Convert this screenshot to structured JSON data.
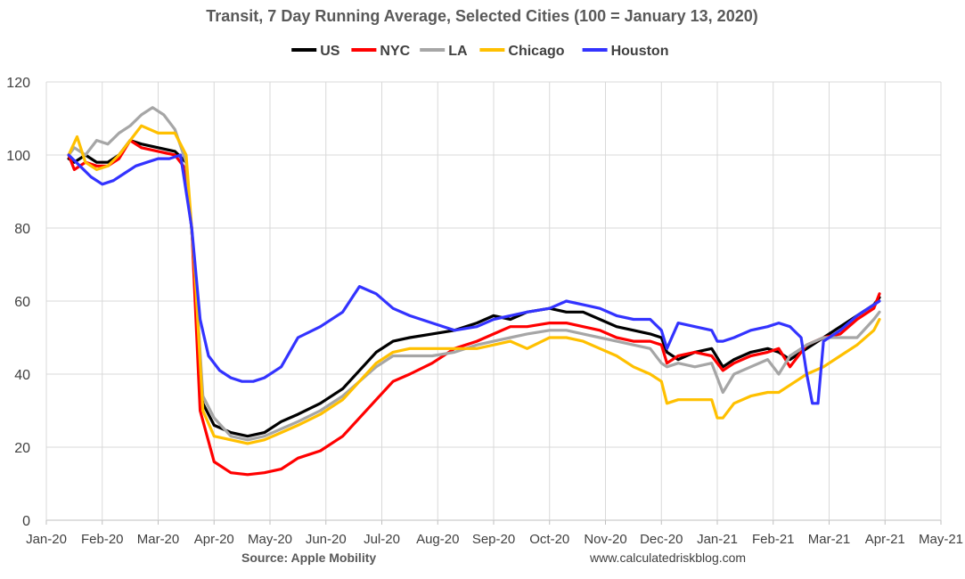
{
  "chart_data": {
    "type": "line",
    "title": "Transit, 7 Day Running Average, Selected Cities (100 = January 13, 2020)",
    "xlabel": "",
    "ylabel": "",
    "ylim": [
      0,
      120
    ],
    "yticks": [
      0,
      20,
      40,
      60,
      80,
      100,
      120
    ],
    "xlim": [
      0,
      16
    ],
    "x_unit": "months since 2020-01-01",
    "x_tick_labels": [
      "Jan-20",
      "Feb-20",
      "Mar-20",
      "Apr-20",
      "May-20",
      "Jun-20",
      "Jul-20",
      "Aug-20",
      "Sep-20",
      "Oct-20",
      "Nov-20",
      "Dec-20",
      "Jan-21",
      "Feb-21",
      "Mar-21",
      "Apr-21",
      "May-21"
    ],
    "grid": true,
    "legend_position": "top",
    "source": "Source: Apple Mobility",
    "website": "www.calculatedriskblog.com",
    "series": [
      {
        "name": "US",
        "color": "#000000",
        "x": [
          0.4,
          0.5,
          0.7,
          0.9,
          1.1,
          1.3,
          1.5,
          1.7,
          2.0,
          2.3,
          2.5,
          2.65,
          2.8,
          3.0,
          3.3,
          3.6,
          3.9,
          4.2,
          4.5,
          4.9,
          5.3,
          5.6,
          5.9,
          6.2,
          6.5,
          6.9,
          7.3,
          7.7,
          8.0,
          8.3,
          8.6,
          9.0,
          9.3,
          9.6,
          9.9,
          10.2,
          10.5,
          10.8,
          11.0,
          11.1,
          11.3,
          11.6,
          11.9,
          12.1,
          12.3,
          12.6,
          12.9,
          13.1,
          13.3,
          13.6,
          13.9,
          14.2,
          14.5,
          14.8,
          14.9
        ],
        "values": [
          99,
          98,
          100,
          98,
          98,
          100,
          104,
          103,
          102,
          101,
          98,
          70,
          32,
          26,
          24,
          23,
          24,
          27,
          29,
          32,
          36,
          41,
          46,
          49,
          50,
          51,
          52,
          54,
          56,
          55,
          57,
          58,
          57,
          57,
          55,
          53,
          52,
          51,
          50,
          46,
          44,
          46,
          47,
          42,
          44,
          46,
          47,
          46,
          44,
          47,
          50,
          53,
          56,
          59,
          61
        ]
      },
      {
        "name": "NYC",
        "color": "#ff0000",
        "x": [
          0.4,
          0.5,
          0.7,
          0.9,
          1.1,
          1.3,
          1.5,
          1.7,
          2.0,
          2.3,
          2.45,
          2.6,
          2.75,
          3.0,
          3.3,
          3.6,
          3.9,
          4.2,
          4.5,
          4.9,
          5.3,
          5.6,
          5.9,
          6.2,
          6.5,
          6.9,
          7.3,
          7.7,
          8.0,
          8.3,
          8.6,
          9.0,
          9.3,
          9.6,
          9.9,
          10.2,
          10.5,
          10.8,
          11.0,
          11.1,
          11.3,
          11.6,
          11.9,
          12.1,
          12.3,
          12.6,
          12.9,
          13.1,
          13.3,
          13.6,
          13.9,
          14.2,
          14.5,
          14.8,
          14.9
        ],
        "values": [
          100,
          96,
          98,
          97,
          97,
          99,
          104,
          102,
          101,
          100,
          97,
          80,
          30,
          16,
          13,
          12.5,
          13,
          14,
          17,
          19,
          23,
          28,
          33,
          38,
          40,
          43,
          47,
          49,
          51,
          53,
          53,
          54,
          54,
          53,
          52,
          50,
          49,
          49,
          48,
          43,
          45,
          46,
          45,
          41,
          43,
          45,
          46,
          47,
          42,
          48,
          50,
          51,
          55,
          58,
          62
        ]
      },
      {
        "name": "LA",
        "color": "#a6a6a6",
        "x": [
          0.4,
          0.5,
          0.7,
          0.9,
          1.1,
          1.3,
          1.5,
          1.7,
          1.9,
          2.1,
          2.3,
          2.5,
          2.65,
          2.8,
          3.0,
          3.3,
          3.6,
          3.9,
          4.2,
          4.5,
          4.9,
          5.3,
          5.6,
          5.9,
          6.2,
          6.5,
          6.9,
          7.3,
          7.7,
          8.0,
          8.3,
          8.6,
          9.0,
          9.3,
          9.6,
          9.9,
          10.2,
          10.5,
          10.8,
          11.0,
          11.1,
          11.3,
          11.6,
          11.9,
          12.1,
          12.3,
          12.6,
          12.9,
          13.1,
          13.3,
          13.6,
          13.9,
          14.2,
          14.5,
          14.8,
          14.9
        ],
        "values": [
          100,
          102,
          100,
          104,
          103,
          106,
          108,
          111,
          113,
          111,
          107,
          98,
          70,
          34,
          28,
          23,
          22,
          23,
          25,
          27,
          30,
          34,
          38,
          42,
          45,
          45,
          45,
          46,
          48,
          49,
          50,
          51,
          52,
          52,
          51,
          50,
          49,
          48,
          47,
          43,
          42,
          43,
          42,
          43,
          35,
          40,
          42,
          44,
          40,
          45,
          48,
          50,
          50,
          50,
          55,
          57
        ]
      },
      {
        "name": "Chicago",
        "color": "#ffc000",
        "x": [
          0.4,
          0.55,
          0.7,
          0.9,
          1.1,
          1.3,
          1.5,
          1.7,
          2.0,
          2.3,
          2.5,
          2.65,
          2.8,
          3.0,
          3.3,
          3.6,
          3.9,
          4.2,
          4.5,
          4.9,
          5.3,
          5.6,
          5.9,
          6.2,
          6.5,
          6.9,
          7.3,
          7.7,
          8.0,
          8.3,
          8.6,
          9.0,
          9.3,
          9.6,
          9.9,
          10.2,
          10.5,
          10.8,
          11.0,
          11.1,
          11.3,
          11.6,
          11.9,
          12.0,
          12.1,
          12.3,
          12.6,
          12.9,
          13.1,
          13.3,
          13.6,
          13.9,
          14.2,
          14.5,
          14.8,
          14.9
        ],
        "values": [
          100,
          105,
          98,
          96,
          97,
          100,
          104,
          108,
          106,
          106,
          100,
          70,
          30,
          23,
          22,
          21,
          22,
          24,
          26,
          29,
          33,
          38,
          43,
          46,
          47,
          47,
          47,
          47,
          48,
          49,
          47,
          50,
          50,
          49,
          47,
          45,
          42,
          40,
          38,
          32,
          33,
          33,
          33,
          28,
          28,
          32,
          34,
          35,
          35,
          37,
          40,
          42,
          45,
          48,
          52,
          55
        ]
      },
      {
        "name": "Houston",
        "color": "#3333ff",
        "x": [
          0.4,
          0.6,
          0.8,
          1.0,
          1.2,
          1.4,
          1.6,
          1.8,
          2.0,
          2.2,
          2.4,
          2.6,
          2.75,
          2.9,
          3.1,
          3.3,
          3.5,
          3.7,
          3.9,
          4.2,
          4.5,
          4.9,
          5.3,
          5.6,
          5.9,
          6.2,
          6.5,
          6.9,
          7.3,
          7.7,
          8.0,
          8.3,
          8.6,
          9.0,
          9.3,
          9.6,
          9.9,
          10.2,
          10.5,
          10.8,
          11.0,
          11.1,
          11.3,
          11.6,
          11.9,
          12.0,
          12.1,
          12.3,
          12.6,
          12.9,
          13.1,
          13.3,
          13.5,
          13.6,
          13.7,
          13.8,
          13.9,
          14.2,
          14.5,
          14.8,
          14.9
        ],
        "values": [
          100,
          97,
          94,
          92,
          93,
          95,
          97,
          98,
          99,
          99,
          100,
          80,
          55,
          45,
          41,
          39,
          38,
          38,
          39,
          42,
          50,
          53,
          57,
          64,
          62,
          58,
          56,
          54,
          52,
          53,
          55,
          56,
          57,
          58,
          60,
          59,
          58,
          56,
          55,
          55,
          52,
          47,
          54,
          53,
          52,
          49,
          49,
          50,
          52,
          53,
          54,
          53,
          50,
          40,
          32,
          32,
          49,
          52,
          56,
          59,
          60
        ]
      }
    ]
  }
}
